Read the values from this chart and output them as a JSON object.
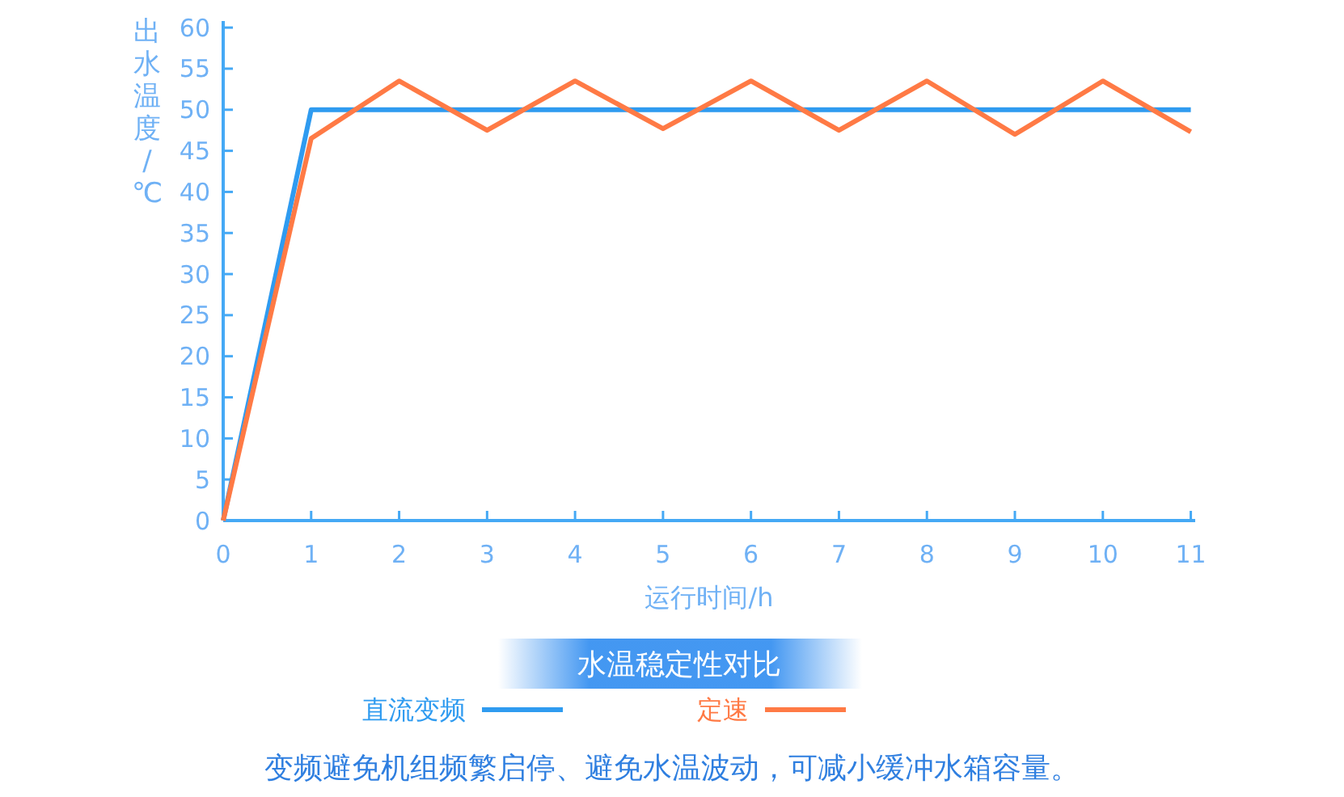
{
  "chart_data": {
    "type": "line",
    "title": "水温稳定性对比",
    "xlabel": "运行时间/h",
    "ylabel": "出水温度/℃",
    "x": [
      0,
      1,
      2,
      3,
      4,
      5,
      6,
      7,
      8,
      9,
      10,
      11
    ],
    "series": [
      {
        "name": "直流变频",
        "color": "#2f9bf0",
        "values": [
          0,
          50,
          50,
          50,
          50,
          50,
          50,
          50,
          50,
          50,
          50,
          50
        ]
      },
      {
        "name": "定速",
        "color": "#ff7a45",
        "values": [
          0,
          46.5,
          53.5,
          47.5,
          53.5,
          47.7,
          53.5,
          47.5,
          53.5,
          47,
          53.5,
          47.3
        ]
      }
    ],
    "xlim": [
      0,
      11.05
    ],
    "xticks": [
      0,
      1,
      2,
      3,
      4,
      5,
      6,
      7,
      8,
      9,
      10,
      11
    ],
    "ylim": [
      0,
      60.8
    ],
    "yticks": [
      0,
      5,
      10,
      15,
      20,
      25,
      30,
      35,
      40,
      45,
      50,
      55,
      60
    ],
    "grid": false,
    "legend": "bottom",
    "marker": "none",
    "line_style": "solid",
    "annotations": [
      "变频避免机组频繁启停、避免水温波动，可减小缓冲水箱容量。"
    ]
  }
}
